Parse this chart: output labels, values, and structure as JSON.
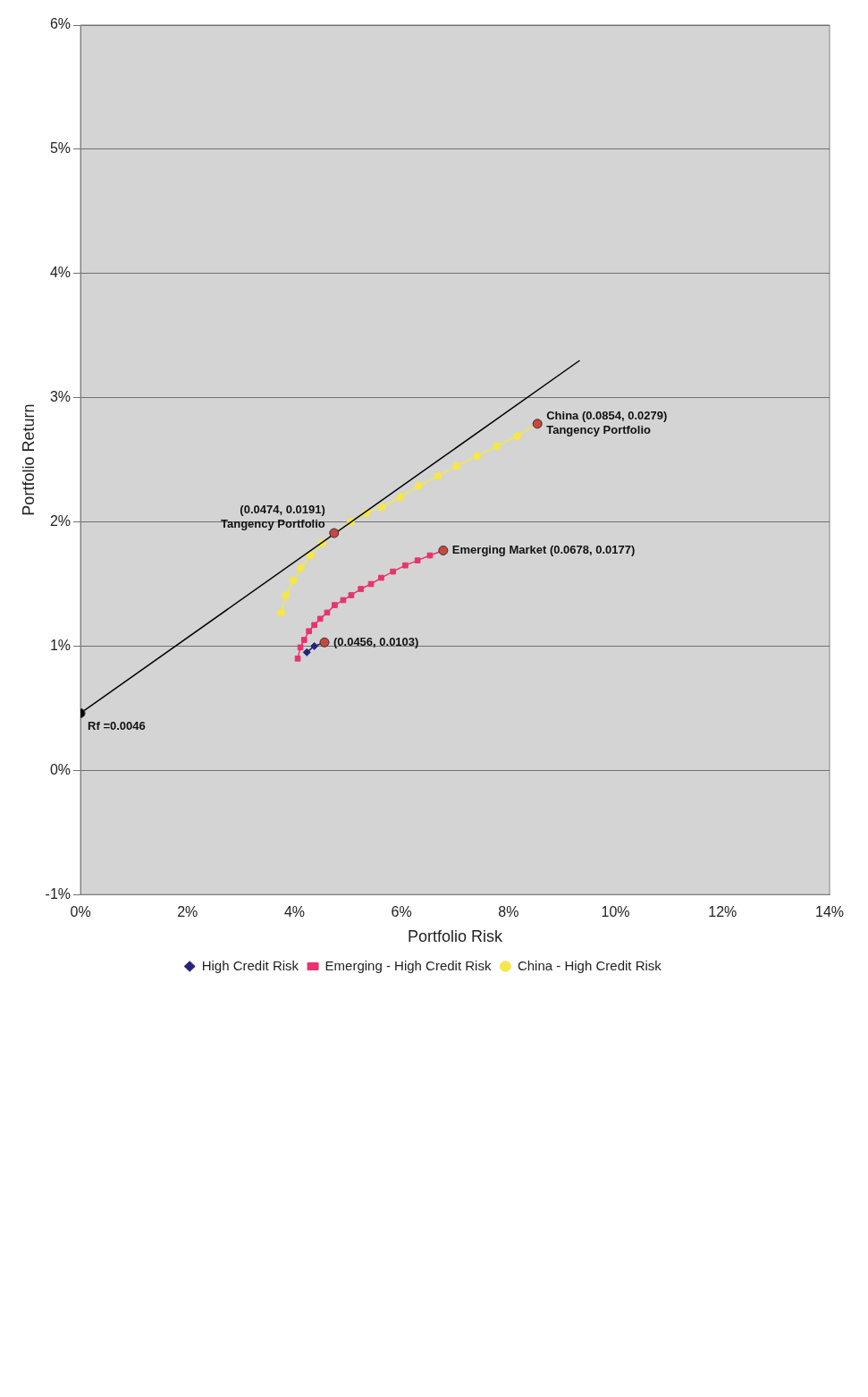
{
  "chart_data": {
    "type": "line",
    "xlabel": "Portfolio Risk",
    "ylabel": "Portfolio Return",
    "xlim": [
      0,
      14
    ],
    "xticks": [
      {
        "value": 0,
        "label": "0%"
      },
      {
        "value": 2,
        "label": "2%"
      },
      {
        "value": 4,
        "label": "4%"
      },
      {
        "value": 6,
        "label": "6%"
      },
      {
        "value": 8,
        "label": "8%"
      },
      {
        "value": 10,
        "label": "10%"
      },
      {
        "value": 12,
        "label": "12%"
      },
      {
        "value": 14,
        "label": "14%"
      }
    ],
    "ylim": [
      -1,
      6
    ],
    "yticks": [
      {
        "value": -1,
        "label": "-1%"
      },
      {
        "value": 0,
        "label": "0%"
      },
      {
        "value": 1,
        "label": "1%"
      },
      {
        "value": 2,
        "label": "2%"
      },
      {
        "value": 3,
        "label": "3%"
      },
      {
        "value": 4,
        "label": "4%"
      },
      {
        "value": 5,
        "label": "5%"
      },
      {
        "value": 6,
        "label": "6%"
      }
    ],
    "grid": "y",
    "legend": "bottom",
    "series": [
      {
        "type": "line",
        "color": "#000000",
        "marker": "none",
        "x": [
          0,
          9.33
        ],
        "values": [
          0.46,
          3.3
        ]
      },
      {
        "name": "High Credit Risk",
        "type": "line",
        "color": "#24247a",
        "marker": "diamond",
        "x": [
          4.23,
          4.37,
          4.56
        ],
        "values": [
          0.95,
          1.0,
          1.03
        ]
      },
      {
        "name": "Emerging - High Credit Risk",
        "type": "line",
        "color": "#e8336e",
        "marker": "square",
        "x": [
          4.06,
          4.11,
          4.18,
          4.27,
          4.37,
          4.48,
          4.61,
          4.75,
          4.91,
          5.06,
          5.24,
          5.43,
          5.62,
          5.84,
          6.07,
          6.3,
          6.53,
          6.78
        ],
        "values": [
          0.9,
          0.99,
          1.05,
          1.12,
          1.17,
          1.22,
          1.27,
          1.33,
          1.37,
          1.41,
          1.46,
          1.5,
          1.55,
          1.6,
          1.65,
          1.69,
          1.73,
          1.77
        ]
      },
      {
        "name": "China - High Credit Risk",
        "type": "line",
        "color": "#f5e64a",
        "marker": "circle",
        "x": [
          3.75,
          3.84,
          3.98,
          4.12,
          4.3,
          4.52,
          4.74,
          5.05,
          5.34,
          5.64,
          5.98,
          6.32,
          6.68,
          7.03,
          7.41,
          7.78,
          8.16,
          8.54
        ],
        "values": [
          1.27,
          1.41,
          1.53,
          1.63,
          1.73,
          1.83,
          1.91,
          2.0,
          2.07,
          2.12,
          2.2,
          2.29,
          2.37,
          2.45,
          2.53,
          2.61,
          2.69,
          2.79
        ]
      },
      {
        "type": "scatter",
        "color": "#c9473c",
        "marker": "circle",
        "x": [
          4.74,
          6.78,
          8.54,
          4.56
        ],
        "values": [
          1.91,
          1.77,
          2.79,
          1.03
        ]
      },
      {
        "type": "scatter",
        "color": "#000000",
        "marker": "circle",
        "x": [
          0
        ],
        "values": [
          0.46
        ]
      }
    ],
    "annotations": [
      {
        "text": "(0.0474, 0.0191)\nTangency Portfolio",
        "x": 4.74,
        "y": 1.91
      },
      {
        "text": "Emerging Market (0.0678, 0.0177)",
        "x": 6.78,
        "y": 1.77
      },
      {
        "text": "China (0.0854, 0.0279)\nTangency Portfolio",
        "x": 8.54,
        "y": 2.79
      },
      {
        "text": "(0.0456, 0.0103)",
        "x": 4.56,
        "y": 1.03
      },
      {
        "text": "Rf =0.0046",
        "x": 0,
        "y": 0.46
      }
    ]
  }
}
